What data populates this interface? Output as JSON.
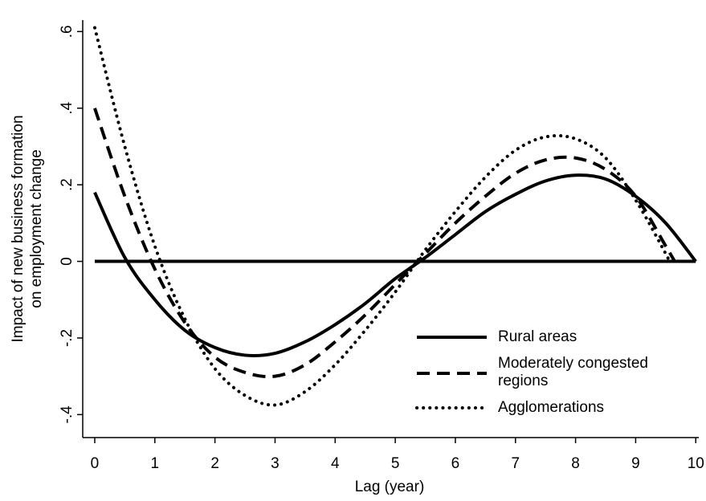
{
  "chart_data": {
    "type": "line",
    "xlabel": "Lag (year)",
    "ylabel": [
      "Impact of new business formation",
      "on employment change"
    ],
    "xlim": [
      -0.2,
      10.05
    ],
    "ylim": [
      -0.46,
      0.63
    ],
    "xticks": [
      0,
      1,
      2,
      3,
      4,
      5,
      6,
      7,
      8,
      9,
      10
    ],
    "yticks": [
      {
        "value": -0.4,
        "label": "-.4"
      },
      {
        "value": -0.2,
        "label": "-.2"
      },
      0,
      {
        "value": 0.2,
        "label": ".2"
      },
      {
        "value": 0.4,
        "label": ".4"
      },
      {
        "value": 0.6,
        "label": ".6"
      }
    ],
    "yline": 0,
    "series": [
      {
        "name": "Rural areas",
        "color": "#000000",
        "style": "solid",
        "x": [
          0,
          0.5,
          1,
          1.5,
          2,
          2.5,
          3,
          3.5,
          4,
          4.5,
          5,
          5.5,
          6,
          6.5,
          7,
          7.5,
          8,
          8.5,
          9,
          9.5,
          10
        ],
        "values": [
          0.18,
          0.01,
          -0.1,
          -0.18,
          -0.225,
          -0.245,
          -0.24,
          -0.21,
          -0.165,
          -0.11,
          -0.045,
          0.01,
          0.07,
          0.13,
          0.175,
          0.21,
          0.225,
          0.215,
          0.17,
          0.1,
          0
        ]
      },
      {
        "name": "Moderately congested regions",
        "color": "#000000",
        "style": "dashed",
        "x": [
          0,
          0.5,
          1,
          1.5,
          2,
          2.5,
          3,
          3.5,
          4,
          4.5,
          5,
          5.5,
          6,
          6.5,
          7,
          7.5,
          8,
          8.5,
          9,
          9.5,
          9.65
        ],
        "values": [
          0.4,
          0.17,
          -0.02,
          -0.16,
          -0.25,
          -0.29,
          -0.3,
          -0.27,
          -0.21,
          -0.14,
          -0.06,
          0.02,
          0.1,
          0.17,
          0.23,
          0.265,
          0.27,
          0.24,
          0.17,
          0.04,
          0
        ]
      },
      {
        "name": "Agglomerations",
        "color": "#000000",
        "style": "dotted",
        "x": [
          0,
          0.5,
          1,
          1.5,
          2,
          2.5,
          3,
          3.5,
          4,
          4.5,
          5,
          5.5,
          6,
          6.5,
          7,
          7.5,
          8,
          8.5,
          9,
          9.5,
          9.55
        ],
        "values": [
          0.61,
          0.3,
          0.04,
          -0.15,
          -0.28,
          -0.35,
          -0.375,
          -0.34,
          -0.27,
          -0.18,
          -0.08,
          0.03,
          0.13,
          0.22,
          0.29,
          0.325,
          0.32,
          0.27,
          0.16,
          0.02,
          0
        ]
      }
    ]
  }
}
